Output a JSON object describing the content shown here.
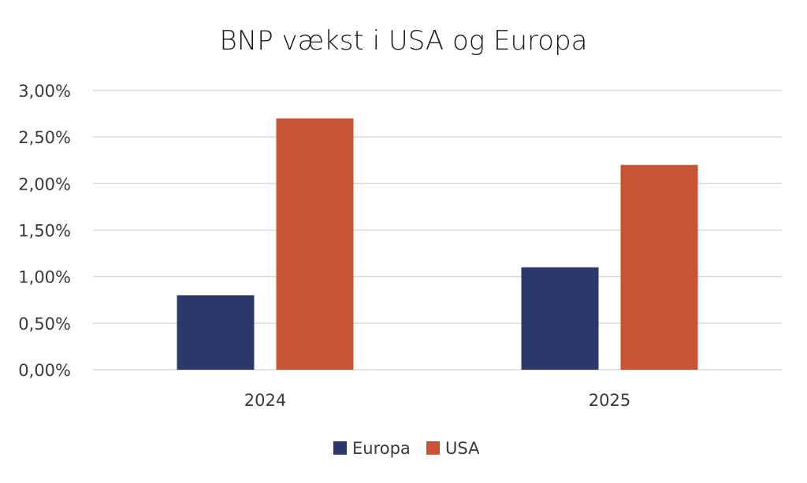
{
  "chart_data": {
    "type": "bar",
    "title": "BNP vækst i USA og Europa",
    "categories": [
      "2024",
      "2025"
    ],
    "series": [
      {
        "name": "Europa",
        "values": [
          0.8,
          1.1
        ],
        "color": "#2c3869"
      },
      {
        "name": "USA",
        "values": [
          2.7,
          2.2
        ],
        "color": "#c85433"
      }
    ],
    "ylim": [
      0,
      3.0
    ],
    "y_ticks": [
      0,
      0.5,
      1.0,
      1.5,
      2.0,
      2.5,
      3.0
    ],
    "y_tick_labels": [
      "0,00%",
      "0,50%",
      "1,00%",
      "1,50%",
      "2,00%",
      "2,50%",
      "3,00%"
    ],
    "grid": true,
    "legend_position": "bottom"
  }
}
